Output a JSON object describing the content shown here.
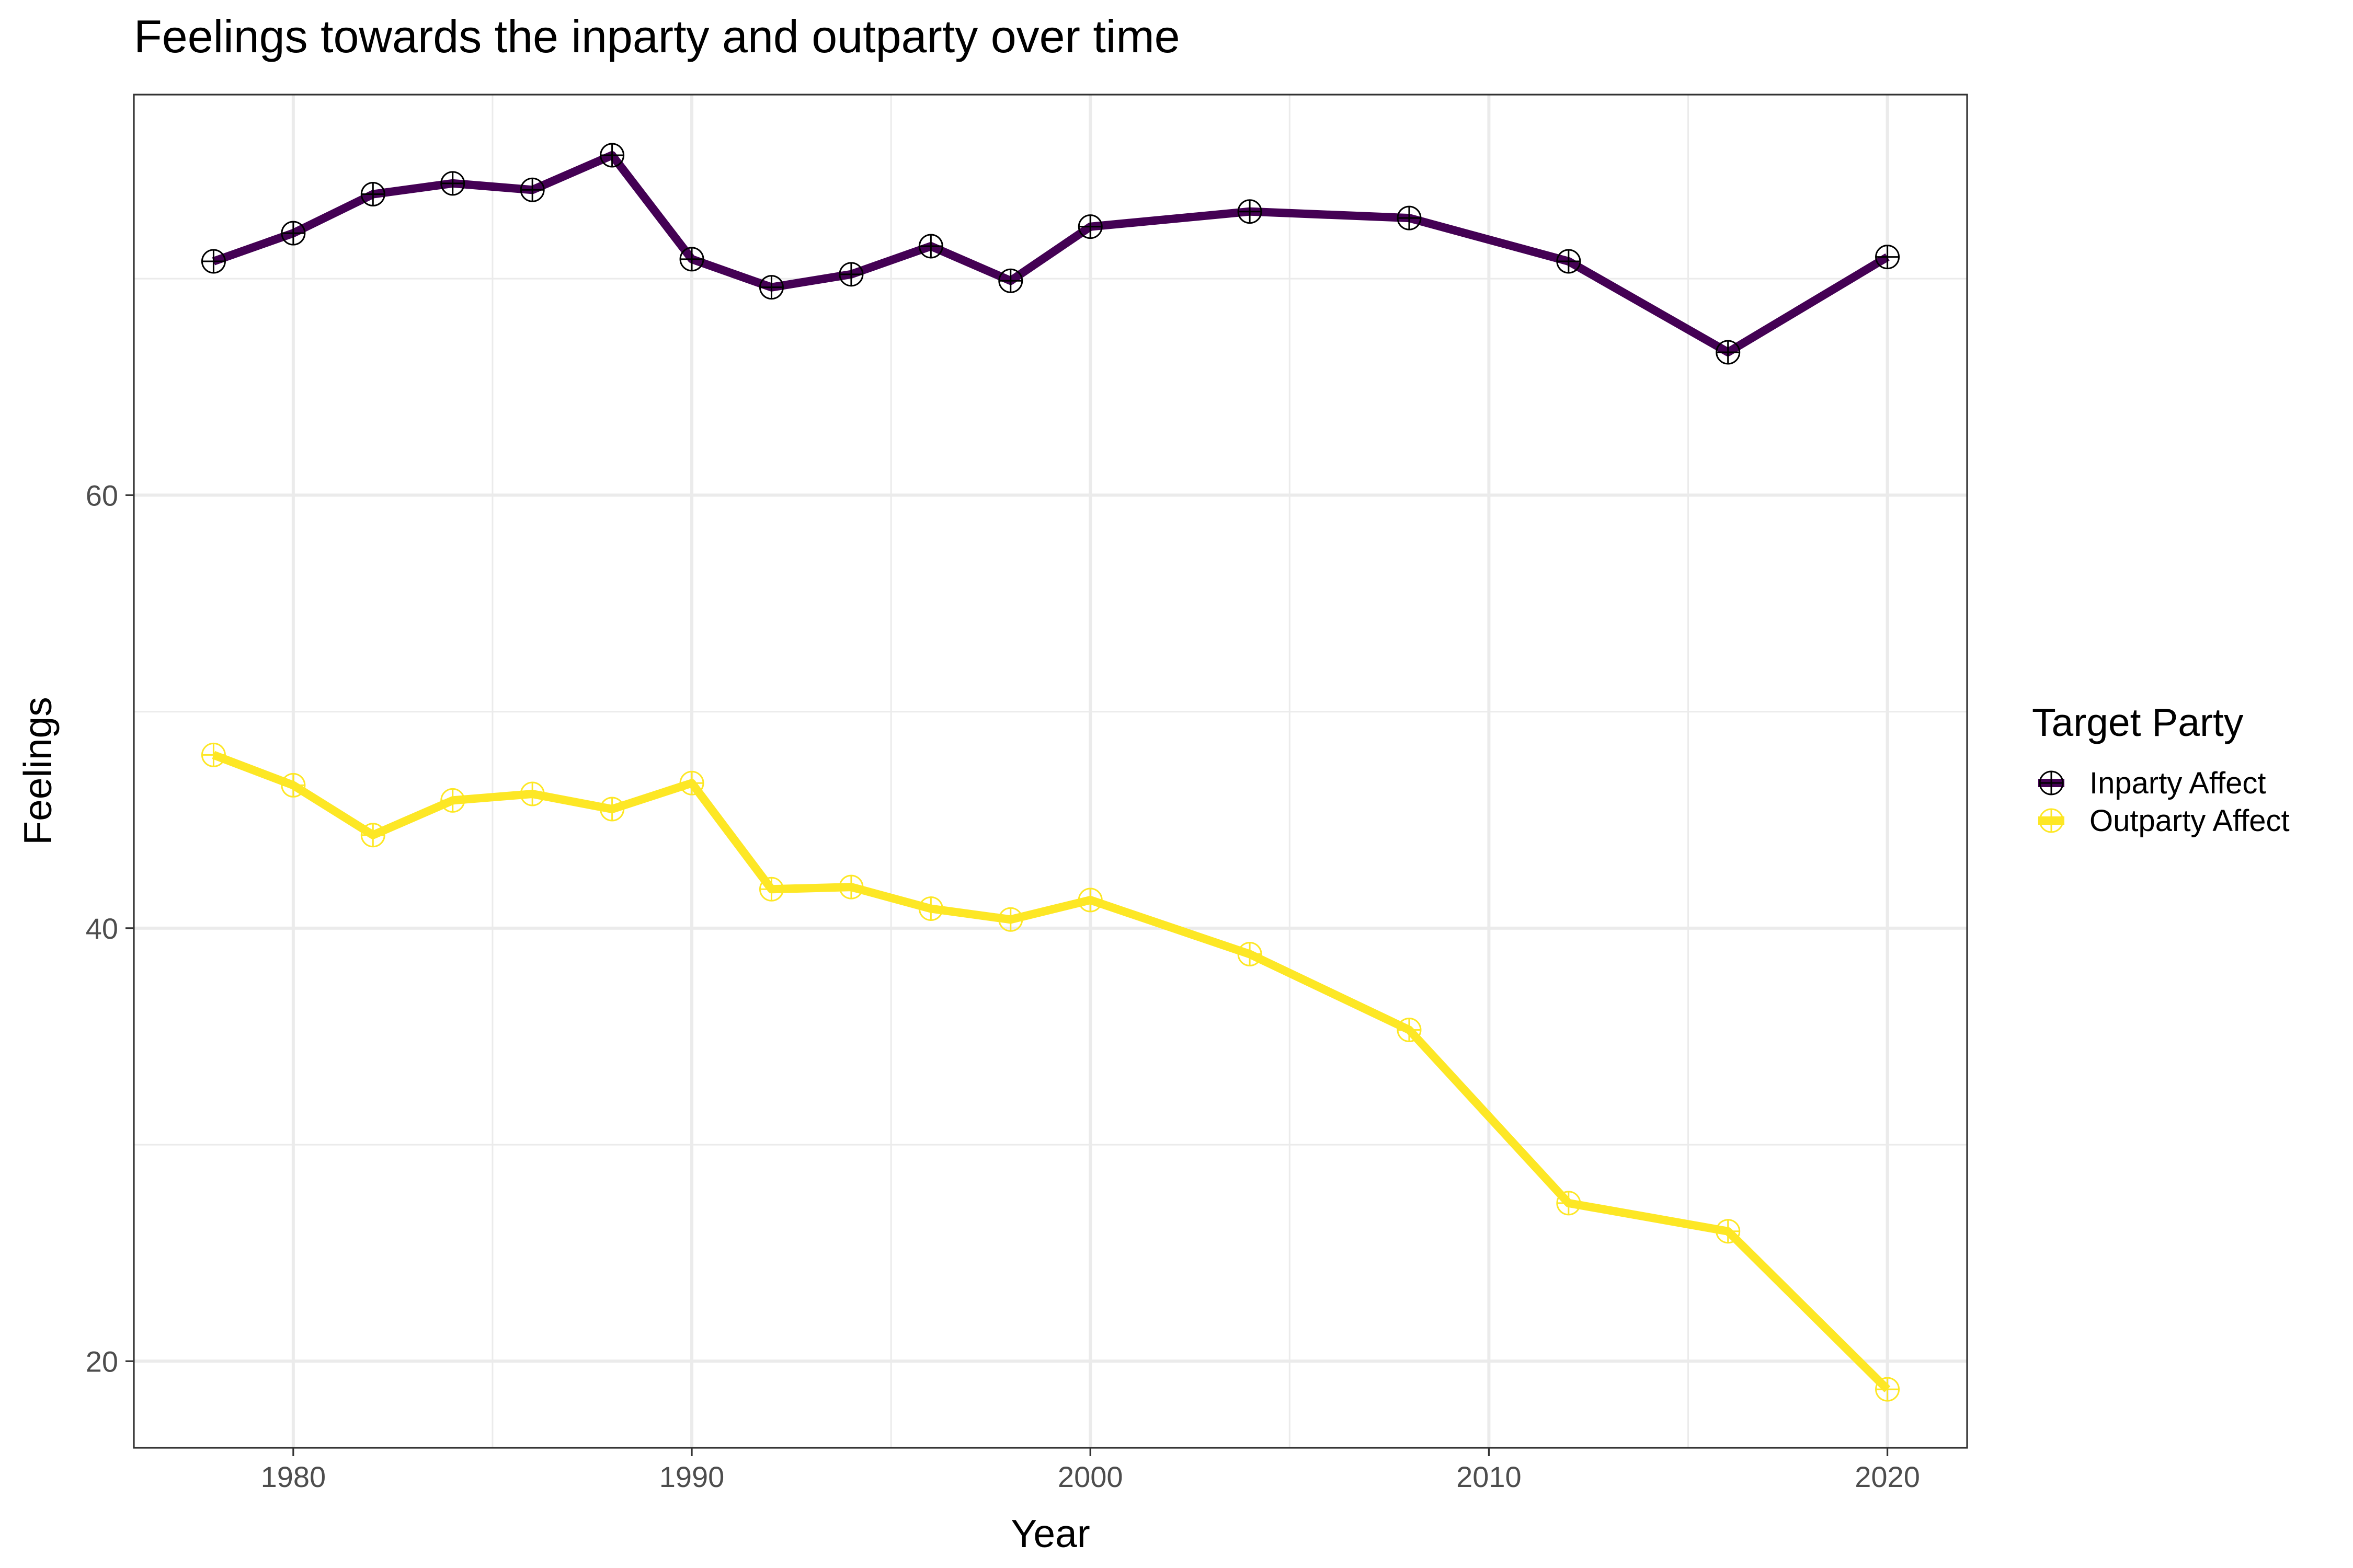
{
  "chart_data": {
    "type": "line",
    "title": "Feelings towards the inparty and outparty over time",
    "xlabel": "Year",
    "ylabel": "Feelings",
    "xlim": [
      1976,
      2022
    ],
    "ylim": [
      16,
      78.5
    ],
    "x_ticks": [
      1980,
      1990,
      2000,
      2010,
      2020
    ],
    "y_ticks": [
      20,
      40,
      60
    ],
    "x_minor_ticks": [
      1985,
      1995,
      2005,
      2015
    ],
    "y_minor_ticks": [
      30,
      50,
      70
    ],
    "grid": true,
    "legend": {
      "title": "Target Party",
      "placement": "right"
    },
    "x": [
      1978,
      1980,
      1982,
      1984,
      1986,
      1988,
      1990,
      1992,
      1994,
      1996,
      1998,
      2000,
      2004,
      2008,
      2012,
      2016,
      2020
    ],
    "series": [
      {
        "name": "Inparty Affect",
        "color": "#440154",
        "values": [
          70.8,
          72.1,
          73.9,
          74.4,
          74.1,
          75.7,
          70.9,
          69.6,
          70.2,
          71.5,
          69.9,
          72.4,
          73.1,
          72.8,
          70.8,
          66.6,
          71.0
        ]
      },
      {
        "name": "Outparty Affect",
        "color": "#FDE725",
        "values": [
          48.0,
          46.6,
          44.3,
          45.9,
          46.2,
          45.5,
          46.7,
          41.8,
          41.9,
          40.9,
          40.4,
          41.3,
          38.8,
          35.3,
          27.3,
          26.0,
          18.7
        ]
      }
    ]
  }
}
